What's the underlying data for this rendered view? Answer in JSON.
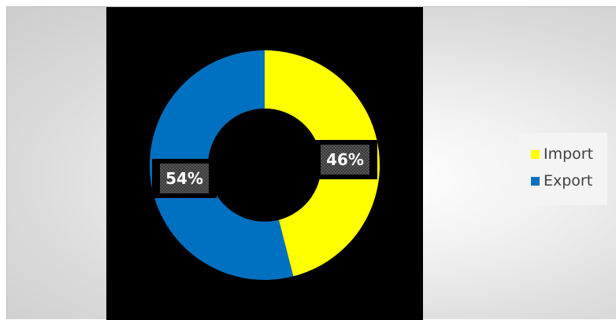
{
  "chart_data": {
    "type": "pie",
    "title": "",
    "categories": [
      "Import",
      "Export"
    ],
    "values": [
      46,
      54
    ],
    "data_labels": [
      "46%",
      "54%"
    ],
    "colors": [
      "#ffff00",
      "#0070c0"
    ],
    "donut": true,
    "legend_position": "right"
  }
}
